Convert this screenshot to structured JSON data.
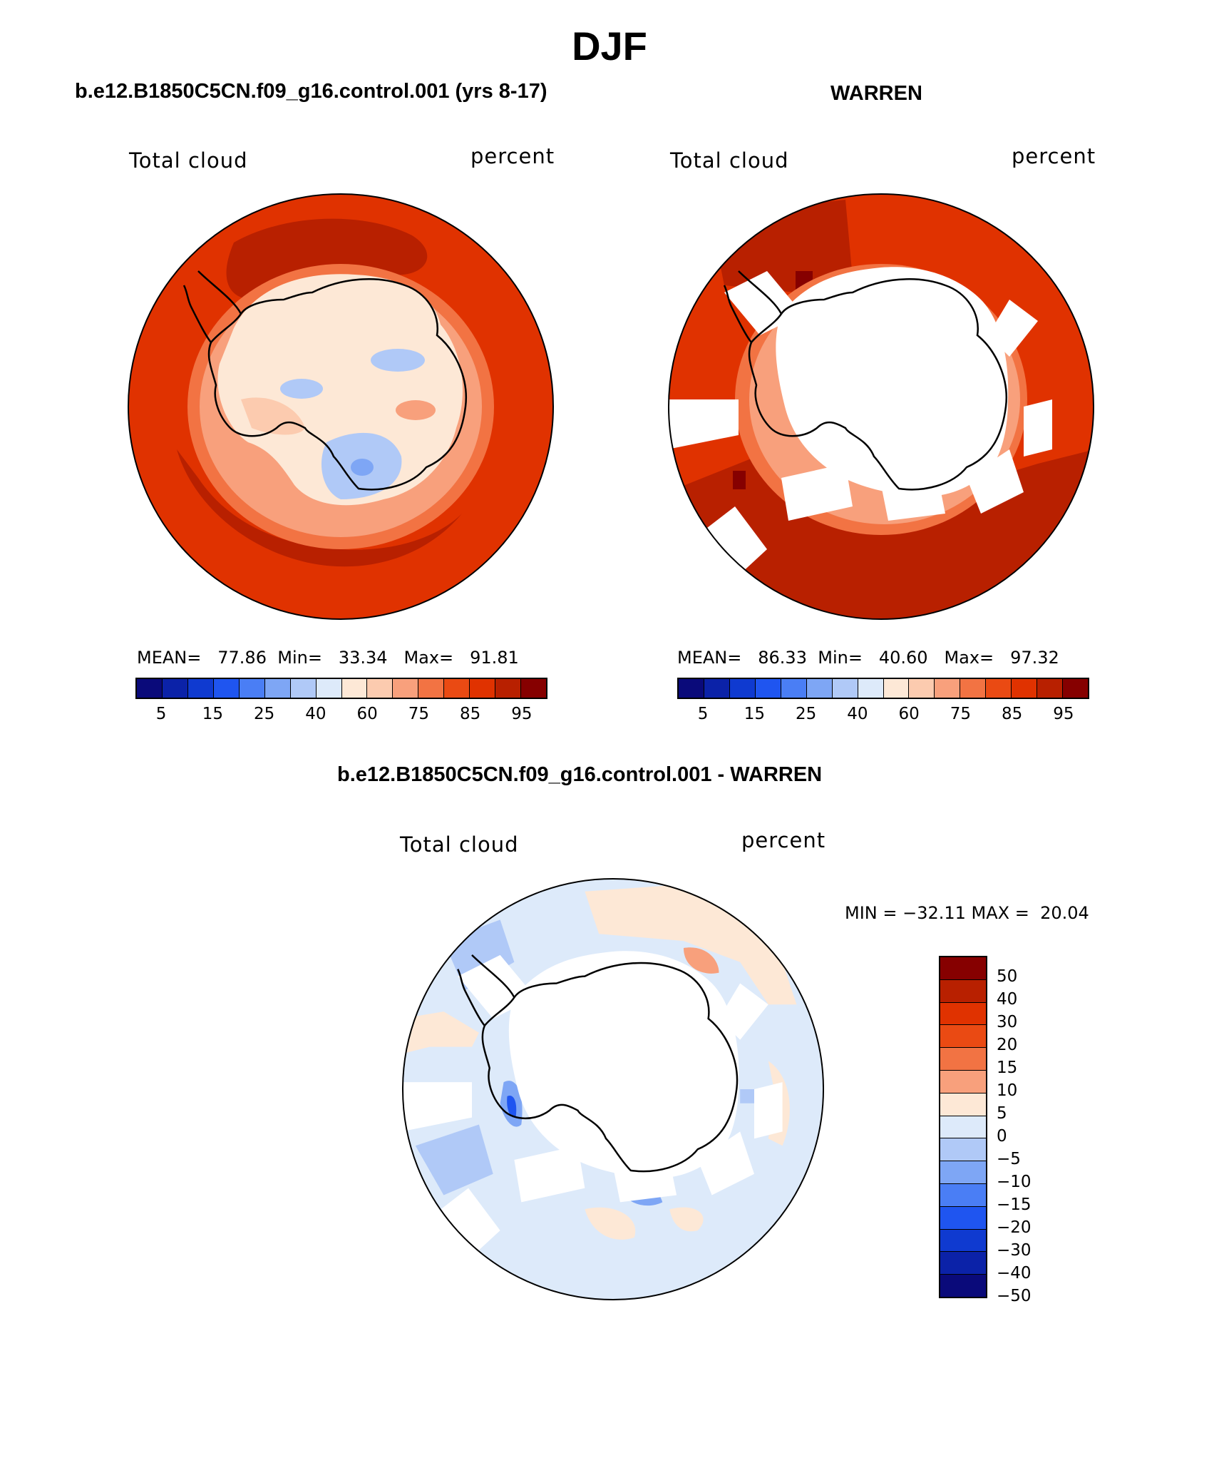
{
  "figure": {
    "title": "DJF",
    "panel1_title": "b.e12.B1850C5CN.f09_g16.control.001 (yrs 8-17)",
    "panel2_title": "WARREN",
    "panel3_title": "b.e12.B1850C5CN.f09_g16.control.001 - WARREN"
  },
  "panels": [
    {
      "variable": "Total cloud",
      "units": "percent",
      "mean_label": "MEAN=",
      "mean": "77.86",
      "min_label": "Min=",
      "min": "33.34",
      "max_label": "Max=",
      "max": "91.81"
    },
    {
      "variable": "Total cloud",
      "units": "percent",
      "mean_label": "MEAN=",
      "mean": "86.33",
      "min_label": "Min=",
      "min": "40.60",
      "max_label": "Max=",
      "max": "97.32"
    },
    {
      "variable": "Total cloud",
      "units": "percent",
      "minmax_text": "MIN = −32.11 MAX =  20.04"
    }
  ],
  "colorbar_abs": {
    "colors": [
      "#0a0a7a",
      "#0b22a8",
      "#0f3ad0",
      "#1f55f0",
      "#4a7ef5",
      "#7ea6f5",
      "#b0c9f7",
      "#ddeafa",
      "#fde8d6",
      "#fccbaf",
      "#f8a07c",
      "#f27343",
      "#ea4a13",
      "#e03200",
      "#b82000",
      "#860000"
    ],
    "ticks": [
      "5",
      "15",
      "25",
      "40",
      "60",
      "75",
      "85",
      "95"
    ]
  },
  "colorbar_diff": {
    "colors": [
      "#860000",
      "#b82000",
      "#e03200",
      "#ea4a13",
      "#f27343",
      "#f8a07c",
      "#fde8d6",
      "#ddeafa",
      "#b0c9f7",
      "#7ea6f5",
      "#4a7ef5",
      "#1f55f0",
      "#0f3ad0",
      "#0b22a8",
      "#0a0a7a"
    ],
    "ticks": [
      "50",
      "40",
      "30",
      "20",
      "15",
      "10",
      "5",
      "0",
      "−5",
      "−10",
      "−15",
      "−20",
      "−30",
      "−40",
      "−50"
    ]
  },
  "map_colors": {
    "p1_outer": "#e03200",
    "p1_dark": "#b82000",
    "p1_ring": "#f27343",
    "p1_ring2": "#f8a07c",
    "p1_land": "#fde8d6",
    "p1_land2": "#fccbaf",
    "p1_blue": "#b0c9f7",
    "p1_blue2": "#7ea6f5",
    "p2_outer": "#e03200",
    "p2_dark": "#b82000",
    "p2_darkest": "#860000",
    "p2_orange": "#f27343",
    "p2_light": "#f8a07c",
    "p3_base": "#ddeafa",
    "p3_blue": "#b0c9f7",
    "p3_blue2": "#7ea6f5",
    "p3_blue3": "#1f55f0",
    "p3_pink": "#fde8d6",
    "p3_pink2": "#fccbaf",
    "p3_orange": "#f8a07c"
  }
}
